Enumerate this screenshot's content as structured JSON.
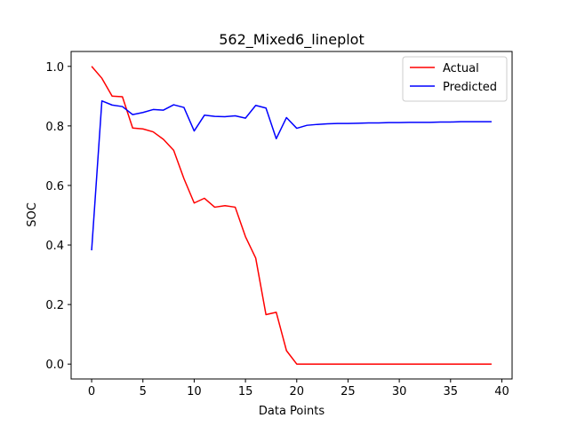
{
  "chart_data": {
    "type": "line",
    "title": "562_Mixed6_lineplot",
    "xlabel": "Data Points",
    "ylabel": "SOC",
    "xlim": [
      -2,
      41
    ],
    "ylim": [
      -0.05,
      1.05
    ],
    "xticks": [
      0,
      5,
      10,
      15,
      20,
      25,
      30,
      35,
      40
    ],
    "xtick_labels": [
      "0",
      "5",
      "10",
      "15",
      "20",
      "25",
      "30",
      "35",
      "40"
    ],
    "yticks": [
      0.0,
      0.2,
      0.4,
      0.6,
      0.8,
      1.0
    ],
    "ytick_labels": [
      "0.0",
      "0.2",
      "0.4",
      "0.6",
      "0.8",
      "1.0"
    ],
    "grid": false,
    "legend_position": "top-right",
    "x": [
      0,
      1,
      2,
      3,
      4,
      5,
      6,
      7,
      8,
      9,
      10,
      11,
      12,
      13,
      14,
      15,
      16,
      17,
      18,
      19,
      20,
      21,
      22,
      23,
      24,
      25,
      26,
      27,
      28,
      29,
      30,
      31,
      32,
      33,
      34,
      35,
      36,
      37,
      38,
      39
    ],
    "series": [
      {
        "name": "Actual",
        "color": "#ff0000",
        "values": [
          1.0,
          0.96,
          0.9,
          0.898,
          0.793,
          0.79,
          0.78,
          0.755,
          0.718,
          0.623,
          0.541,
          0.557,
          0.527,
          0.532,
          0.527,
          0.428,
          0.356,
          0.166,
          0.174,
          0.045,
          0.0,
          0.0,
          0.0,
          0.0,
          0.0,
          0.0,
          0.0,
          0.0,
          0.0,
          0.0,
          0.0,
          0.0,
          0.0,
          0.0,
          0.0,
          0.0,
          0.0,
          0.0,
          0.0,
          0.0
        ]
      },
      {
        "name": "Predicted",
        "color": "#0000ff",
        "values": [
          0.382,
          0.884,
          0.87,
          0.865,
          0.838,
          0.845,
          0.855,
          0.853,
          0.871,
          0.862,
          0.783,
          0.836,
          0.832,
          0.831,
          0.834,
          0.826,
          0.869,
          0.86,
          0.757,
          0.828,
          0.792,
          0.802,
          0.805,
          0.807,
          0.808,
          0.808,
          0.809,
          0.81,
          0.81,
          0.811,
          0.811,
          0.812,
          0.812,
          0.812,
          0.813,
          0.813,
          0.814,
          0.814,
          0.814,
          0.814
        ]
      }
    ]
  }
}
